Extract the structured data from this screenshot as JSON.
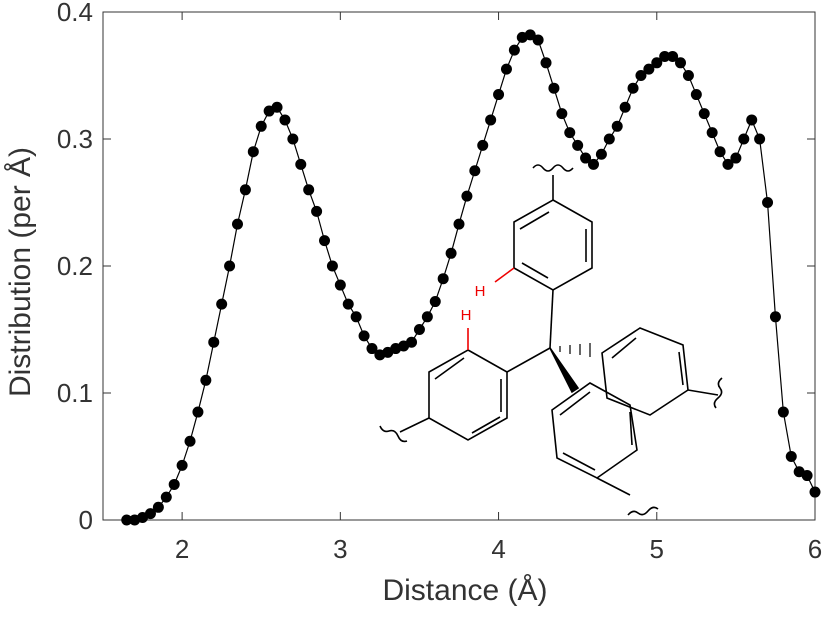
{
  "chart_data": {
    "type": "line",
    "x_label": "Distance (Å)",
    "y_label": "Distribution (per Å)",
    "annotations": [
      "H",
      "H"
    ],
    "series": [
      {
        "color": "#000000",
        "x": [
          1.65,
          1.7,
          1.75,
          1.8,
          1.85,
          1.9,
          1.95,
          2.0,
          2.05,
          2.1,
          2.15,
          2.2,
          2.25,
          2.3,
          2.35,
          2.4,
          2.45,
          2.5,
          2.55,
          2.6,
          2.65,
          2.7,
          2.75,
          2.8,
          2.85,
          2.9,
          2.95,
          3.0,
          3.05,
          3.1,
          3.15,
          3.2,
          3.25,
          3.3,
          3.35,
          3.4,
          3.45,
          3.5,
          3.55,
          3.6,
          3.65,
          3.7,
          3.75,
          3.8,
          3.85,
          3.9,
          3.95,
          4.0,
          4.05,
          4.1,
          4.15,
          4.2,
          4.25,
          4.3,
          4.35,
          4.4,
          4.45,
          4.5,
          4.55,
          4.6,
          4.65,
          4.7,
          4.75,
          4.8,
          4.85,
          4.9,
          4.95,
          5.0,
          5.05,
          5.1,
          5.15,
          5.2,
          5.25,
          5.3,
          5.35,
          5.4,
          5.45,
          5.5,
          5.55,
          5.6,
          5.65,
          5.7,
          5.75,
          5.8,
          5.85,
          5.9,
          5.95,
          6.0
        ],
        "values": [
          0,
          0,
          0.002,
          0.005,
          0.01,
          0.018,
          0.028,
          0.043,
          0.062,
          0.085,
          0.11,
          0.14,
          0.17,
          0.2,
          0.233,
          0.26,
          0.29,
          0.31,
          0.322,
          0.325,
          0.315,
          0.3,
          0.28,
          0.26,
          0.243,
          0.22,
          0.2,
          0.185,
          0.17,
          0.16,
          0.145,
          0.135,
          0.13,
          0.132,
          0.135,
          0.137,
          0.14,
          0.15,
          0.16,
          0.172,
          0.19,
          0.21,
          0.233,
          0.255,
          0.275,
          0.295,
          0.315,
          0.335,
          0.355,
          0.37,
          0.38,
          0.382,
          0.378,
          0.36,
          0.34,
          0.32,
          0.305,
          0.295,
          0.285,
          0.28,
          0.288,
          0.3,
          0.31,
          0.325,
          0.34,
          0.35,
          0.355,
          0.36,
          0.365,
          0.365,
          0.36,
          0.35,
          0.335,
          0.32,
          0.305,
          0.29,
          0.28,
          0.285,
          0.3,
          0.315,
          0.3,
          0.25,
          0.16,
          0.085,
          0.05,
          0.038,
          0.035,
          0.022
        ]
      }
    ],
    "xlim": [
      1.5,
      6
    ],
    "xticks": [
      2,
      3,
      4,
      5,
      6
    ],
    "ylim": [
      0,
      0.4
    ],
    "yticks": [
      0,
      0.1,
      0.2,
      0.3,
      0.4
    ]
  }
}
